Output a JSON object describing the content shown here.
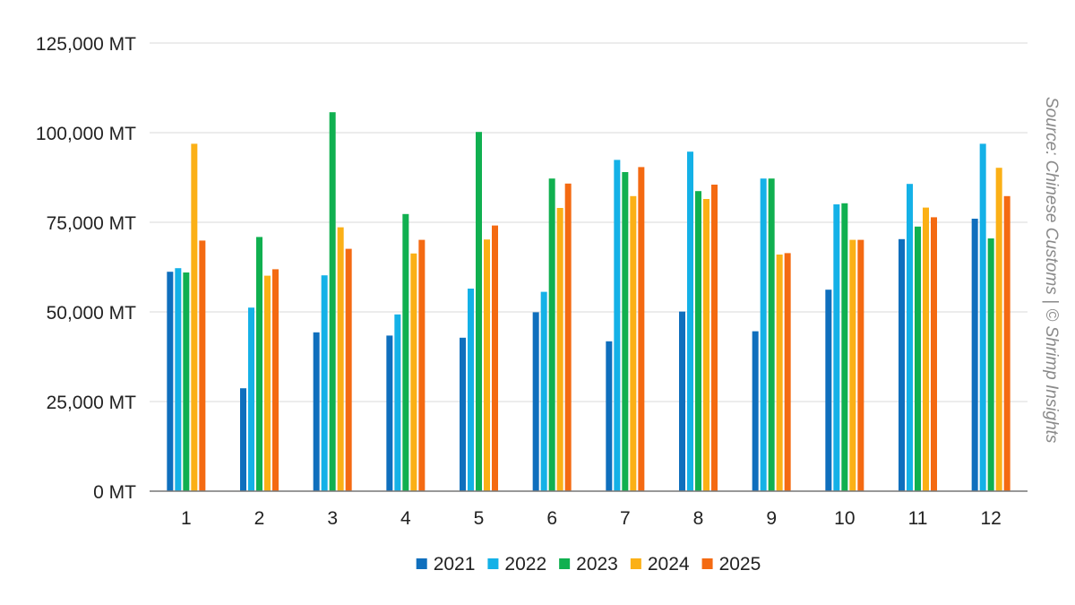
{
  "chart_data": {
    "type": "bar",
    "categories": [
      "1",
      "2",
      "3",
      "4",
      "5",
      "6",
      "7",
      "8",
      "9",
      "10",
      "11",
      "12"
    ],
    "series": [
      {
        "name": "2021",
        "color": "#0f6fbd",
        "values": [
          61200,
          28700,
          44300,
          43400,
          42800,
          49900,
          41800,
          50100,
          44600,
          56200,
          70300,
          76000
        ]
      },
      {
        "name": "2022",
        "color": "#14b1e7",
        "values": [
          62200,
          51200,
          60200,
          49300,
          56500,
          55600,
          92400,
          94700,
          87200,
          80000,
          85700,
          96900
        ]
      },
      {
        "name": "2023",
        "color": "#10b050",
        "values": [
          61000,
          70900,
          105700,
          77300,
          100200,
          87200,
          89000,
          83700,
          87200,
          80300,
          73800,
          70500
        ]
      },
      {
        "name": "2024",
        "color": "#fbb016",
        "values": [
          96900,
          60100,
          73600,
          66300,
          70200,
          79000,
          82300,
          81500,
          66000,
          70100,
          79100,
          90200
        ]
      },
      {
        "name": "2025",
        "color": "#f46a12",
        "values": [
          69900,
          61900,
          67600,
          70100,
          74100,
          85800,
          90400,
          85500,
          66400,
          70100,
          76400,
          82300
        ]
      }
    ],
    "y_ticks": [
      "0 MT",
      "25,000 MT",
      "50,000 MT",
      "75,000 MT",
      "100,000 MT",
      "125,000 MT"
    ],
    "ylim": [
      0,
      125000
    ],
    "grid": true,
    "legend_position": "bottom-center",
    "source_note": "Source: Chinese Customs | © Shrimp Insights"
  }
}
